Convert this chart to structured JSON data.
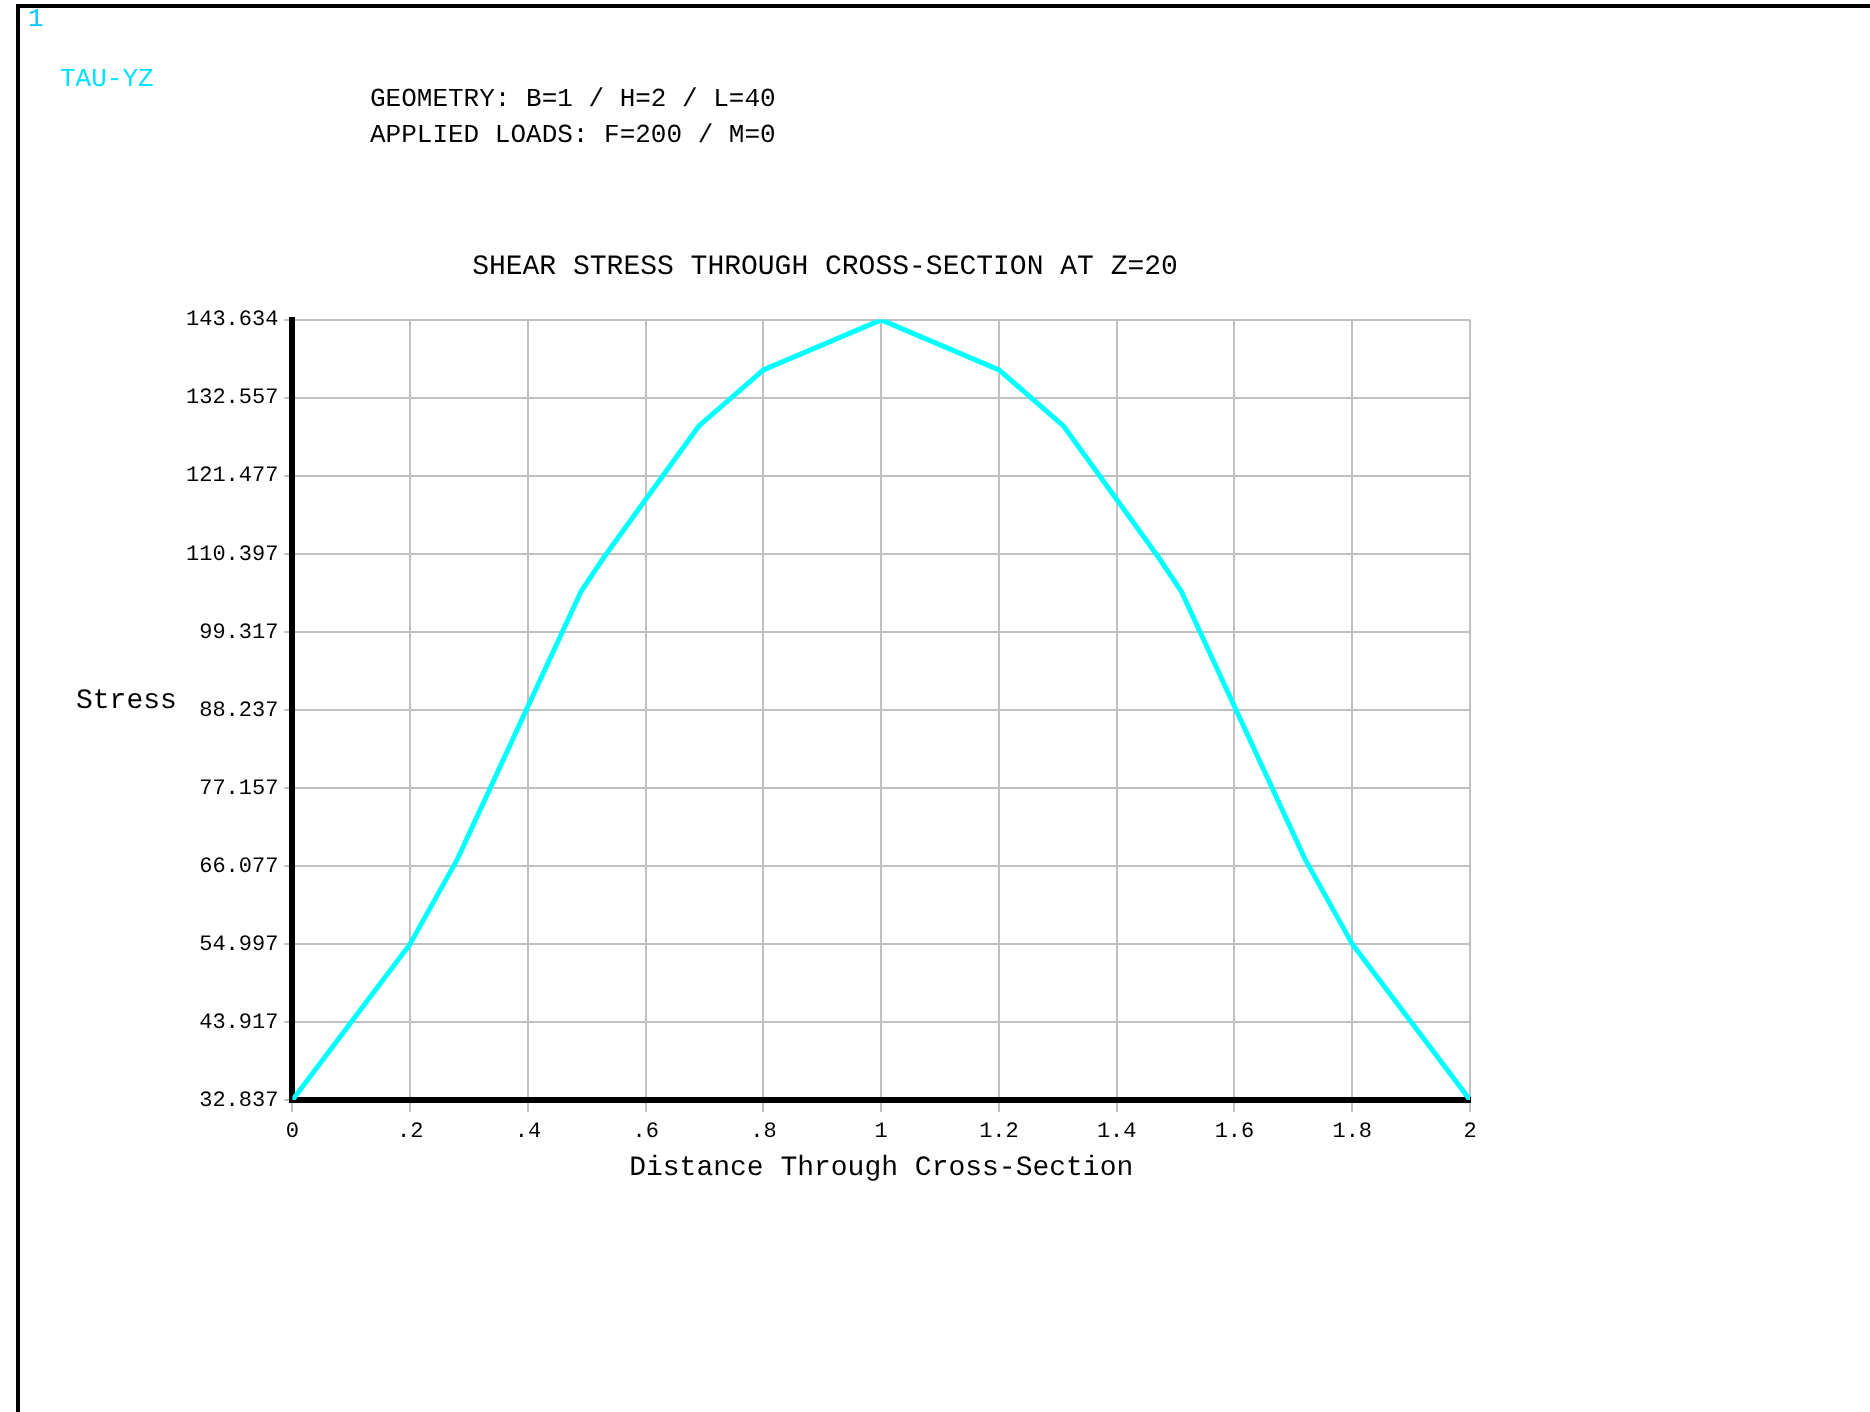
{
  "chart_data": {
    "type": "line",
    "title": "SHEAR STRESS THROUGH CROSS-SECTION AT Z=20",
    "xlabel": "Distance Through Cross-Section",
    "ylabel": "Stress",
    "annotations": [
      "1",
      "TAU-YZ",
      "GEOMETRY: B=1 / H=2 / L=40",
      "APPLIED LOADS: F=200 / M=0"
    ],
    "x": [
      0,
      0.2,
      0.28,
      0.49,
      0.53,
      0.69,
      0.8,
      1,
      1.2,
      1.31,
      1.47,
      1.51,
      1.72,
      1.8,
      2
    ],
    "series": [
      {
        "color": "#00ffff",
        "values": [
          32.84,
          55,
          67,
          105,
          110,
          128.5,
          136.5,
          143.6,
          136.5,
          128.5,
          110,
          105,
          67,
          55,
          32.84
        ]
      }
    ],
    "xlim": [
      0,
      2
    ],
    "xticks": [
      0,
      {
        "value": 0.2,
        "label": ".2"
      },
      {
        "value": 0.4,
        "label": ".4"
      },
      {
        "value": 0.6,
        "label": ".6"
      },
      {
        "value": 0.8,
        "label": ".8"
      },
      1,
      1.2,
      1.4,
      1.6,
      1.8,
      2
    ],
    "ylim": [
      32.837,
      143.634
    ],
    "yticks": [
      32.837,
      43.917,
      54.997,
      66.077,
      77.157,
      88.237,
      99.317,
      110.397,
      121.477,
      132.557,
      143.634
    ],
    "grid": true,
    "legend": false,
    "marker": "none",
    "line_style": "solid"
  }
}
